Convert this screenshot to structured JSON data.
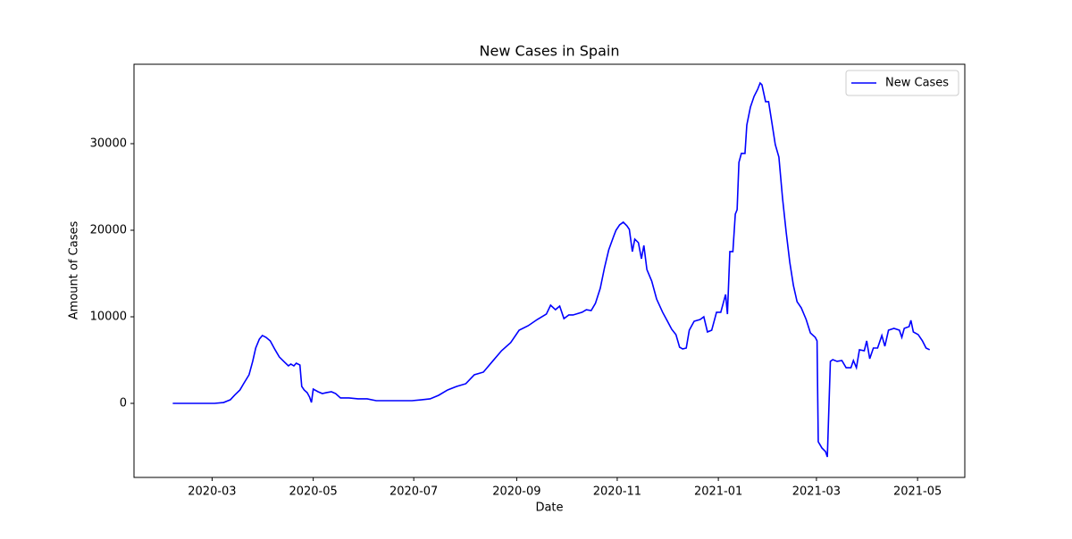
{
  "chart_data": {
    "type": "line",
    "title": "New Cases in Spain",
    "xlabel": "Date",
    "ylabel": "Amount of Cases",
    "x": [
      2020.099,
      2020.168,
      2020.183,
      2020.194,
      2020.201,
      2020.21,
      2020.216,
      2020.225,
      2020.231,
      2020.236,
      2020.242,
      2020.247,
      2020.253,
      2020.26,
      2020.268,
      2020.275,
      2020.284,
      2020.29,
      2020.294,
      2020.299,
      2020.303,
      2020.309,
      2020.312,
      2020.316,
      2020.321,
      2020.325,
      2020.328,
      2020.331,
      2020.339,
      2020.346,
      2020.353,
      2020.361,
      2020.368,
      2020.376,
      2020.39,
      2020.405,
      2020.42,
      2020.435,
      2020.464,
      2020.494,
      2020.509,
      2020.524,
      2020.538,
      2020.553,
      2020.568,
      2020.583,
      2020.597,
      2020.612,
      2020.627,
      2020.642,
      2020.657,
      2020.671,
      2020.686,
      2020.701,
      2020.716,
      2020.723,
      2020.731,
      2020.738,
      2020.745,
      2020.753,
      2020.76,
      2020.775,
      2020.782,
      2020.79,
      2020.797,
      2020.805,
      2020.812,
      2020.819,
      2020.827,
      2020.831,
      2020.837,
      2020.843,
      2020.849,
      2020.853,
      2020.858,
      2020.862,
      2020.868,
      2020.873,
      2020.877,
      2020.882,
      2020.89,
      2020.898,
      2020.908,
      2020.916,
      2020.923,
      2020.93,
      2020.936,
      2020.941,
      2020.947,
      2020.952,
      2020.96,
      2020.97,
      2020.976,
      2020.982,
      2020.989,
      2020.997,
      2021.004,
      2021.012,
      2021.015,
      2021.019,
      2021.024,
      2021.028,
      2021.031,
      2021.034,
      2021.038,
      2021.044,
      2021.047,
      2021.053,
      2021.059,
      2021.065,
      2021.069,
      2021.072,
      2021.078,
      2021.083,
      2021.089,
      2021.094,
      2021.1,
      2021.106,
      2021.112,
      2021.118,
      2021.124,
      2021.13,
      2021.137,
      2021.145,
      2021.152,
      2021.16,
      2021.163,
      2021.165,
      2021.171,
      2021.177,
      2021.18,
      2021.185,
      2021.189,
      2021.196,
      2021.204,
      2021.211,
      2021.219,
      2021.223,
      2021.228,
      2021.233,
      2021.241,
      2021.245,
      2021.25,
      2021.256,
      2021.263,
      2021.27,
      2021.275,
      2021.281,
      2021.29,
      2021.299,
      2021.303,
      2021.307,
      2021.315,
      2021.318,
      2021.322,
      2021.33,
      2021.337,
      2021.343,
      2021.349
    ],
    "series": [
      {
        "name": "New Cases",
        "color": "#0000ff",
        "values": [
          0,
          0,
          100,
          410,
          930,
          1550,
          2270,
          3300,
          4850,
          6390,
          7420,
          7840,
          7630,
          7220,
          6190,
          5360,
          4740,
          4330,
          4540,
          4330,
          4640,
          4430,
          1960,
          1550,
          1240,
          720,
          100,
          1650,
          1340,
          1130,
          1240,
          1340,
          1130,
          620,
          620,
          520,
          520,
          310,
          310,
          310,
          410,
          520,
          930,
          1550,
          1960,
          2270,
          3300,
          3610,
          4850,
          6080,
          7010,
          8450,
          8970,
          9690,
          10310,
          11340,
          10820,
          11240,
          9790,
          10210,
          10210,
          10520,
          10820,
          10720,
          11550,
          13300,
          15670,
          17730,
          19280,
          20000,
          20620,
          20930,
          20510,
          20100,
          17530,
          18970,
          18560,
          16700,
          18250,
          15460,
          14120,
          12060,
          10520,
          9480,
          8560,
          7940,
          6490,
          6290,
          6390,
          8450,
          9480,
          9690,
          10000,
          8250,
          8450,
          10520,
          10520,
          12580,
          10310,
          17530,
          17530,
          21860,
          22370,
          27840,
          28870,
          28870,
          32160,
          34230,
          35460,
          36290,
          37010,
          36800,
          34850,
          34850,
          32160,
          29900,
          28450,
          23710,
          19790,
          16290,
          13610,
          11750,
          11030,
          9690,
          8140,
          7630,
          7220,
          -4430,
          -5150,
          -5570,
          -6190,
          4850,
          5050,
          4850,
          4950,
          4120,
          4120,
          4950,
          4120,
          6190,
          6080,
          7220,
          5150,
          6390,
          6390,
          7840,
          6600,
          8450,
          8660,
          8450,
          7630,
          8660,
          8870,
          9590,
          8250,
          7940,
          7220,
          6390,
          6190
        ]
      }
    ],
    "xlim": [
      2020.035,
      2021.407
    ],
    "ylim": [
      -8557,
      39175
    ],
    "xticks": [
      {
        "value": 2020.164,
        "label": "2020-03"
      },
      {
        "value": 2020.331,
        "label": "2020-05"
      },
      {
        "value": 2020.497,
        "label": "2020-07"
      },
      {
        "value": 2020.667,
        "label": "2020-09"
      },
      {
        "value": 2020.833,
        "label": "2020-11"
      },
      {
        "value": 2021.0,
        "label": "2021-01"
      },
      {
        "value": 2021.162,
        "label": "2021-03"
      },
      {
        "value": 2021.329,
        "label": "2021-05"
      }
    ],
    "yticks": [
      0,
      10000,
      20000,
      30000
    ],
    "legend": "upper right"
  }
}
